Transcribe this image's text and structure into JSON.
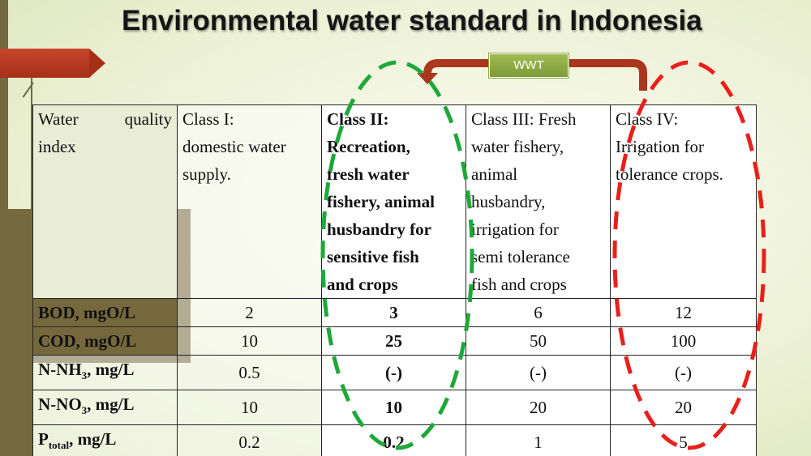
{
  "slide": {
    "title": "Environmental water standard in Indonesia",
    "callout_label": "WWT"
  },
  "table": {
    "header": {
      "index_word1": "Water",
      "index_word2": "quality",
      "index_word3": "index",
      "class1": [
        "Class I:",
        "domestic water",
        "supply."
      ],
      "class2": [
        "Class II:",
        "Recreation,",
        "fresh water",
        "fishery, animal",
        "husbandry for",
        "sensitive fish",
        "and crops"
      ],
      "class3": [
        "Class III: Fresh",
        "water fishery,",
        "animal",
        "husbandry,",
        "irrigation for",
        "semi tolerance",
        "fish and crops"
      ],
      "class4": [
        "Class IV:",
        "Irrigation for",
        "tolerance crops."
      ]
    },
    "rows": [
      {
        "label": "BOD, mgO/L",
        "values": [
          "2",
          "3",
          "6",
          "12"
        ]
      },
      {
        "label": "COD, mgO/L",
        "values": [
          "10",
          "25",
          "50",
          "100"
        ]
      },
      {
        "label_main": "N-NH",
        "label_sub": "3",
        "label_tail": ", mg/L",
        "values": [
          "0.5",
          "(-)",
          "(-)",
          "(-)"
        ]
      },
      {
        "label_main": "N-NO",
        "label_sub": "3",
        "label_tail": ", mg/L",
        "values": [
          "10",
          "10",
          "20",
          "20"
        ]
      },
      {
        "label_main": "P",
        "label_sub": "total",
        "label_tail": ", mg/L",
        "values": [
          "0.2",
          "0.2",
          "1",
          "5"
        ]
      }
    ]
  },
  "colors": {
    "highlight_class2": "#1fa83a",
    "highlight_class4": "#e8201c",
    "arrow": "#a9361d",
    "callout": "#8aa646"
  }
}
